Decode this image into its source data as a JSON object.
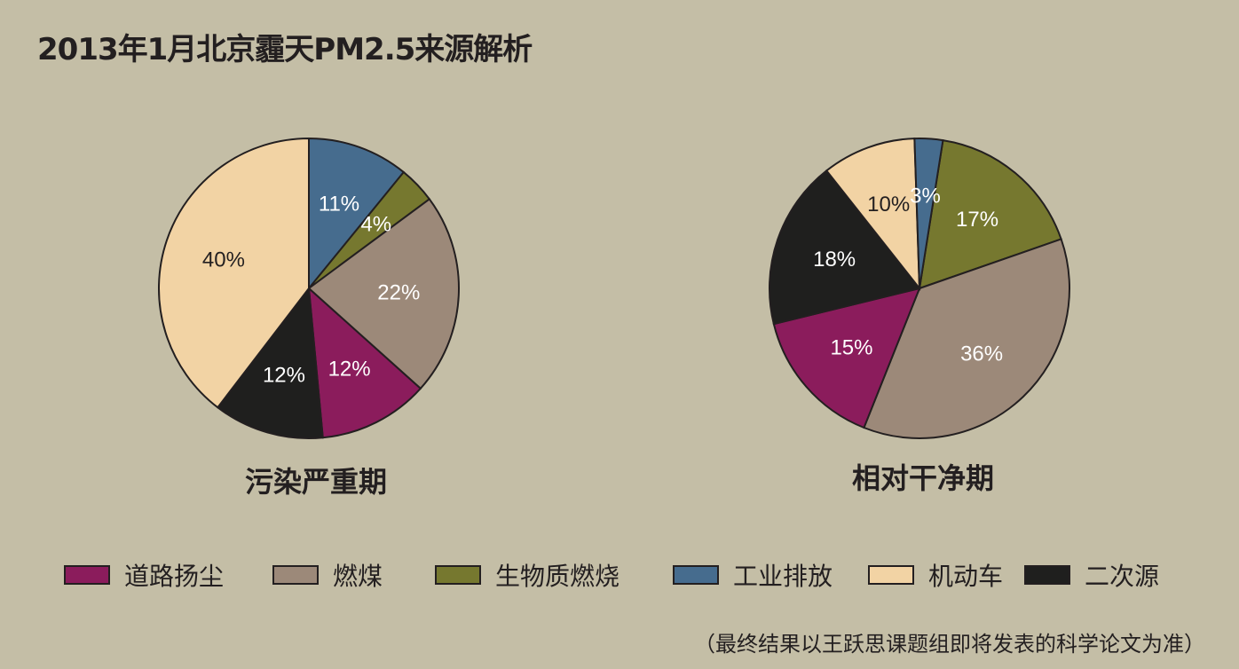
{
  "title": "2013年1月北京霾天PM2.5来源解析",
  "note": "（最终结果以王跃思课题组即将发表的科学论文为准）",
  "colors": {
    "road_dust": "#8b1c5c",
    "coal": "#9c8979",
    "biomass": "#76782f",
    "industry": "#466c8e",
    "vehicle": "#f2d3a4",
    "secondary": "#1f1f1e"
  },
  "legend": [
    {
      "key": "road_dust",
      "label": "道路扬尘"
    },
    {
      "key": "coal",
      "label": "燃煤"
    },
    {
      "key": "biomass",
      "label": "生物质燃烧"
    },
    {
      "key": "industry",
      "label": "工业排放"
    },
    {
      "key": "vehicle",
      "label": "机动车"
    },
    {
      "key": "secondary",
      "label": "二次源"
    }
  ],
  "chart_data": [
    {
      "type": "pie",
      "title": "污染严重期",
      "slices": [
        {
          "key": "industry",
          "label": "工业排放",
          "value": 11,
          "text": "11%"
        },
        {
          "key": "biomass",
          "label": "生物质燃烧",
          "value": 4,
          "text": "4%"
        },
        {
          "key": "coal",
          "label": "燃煤",
          "value": 22,
          "text": "22%"
        },
        {
          "key": "road_dust",
          "label": "道路扬尘",
          "value": 12,
          "text": "12%"
        },
        {
          "key": "secondary",
          "label": "二次源",
          "value": 12,
          "text": "12%"
        },
        {
          "key": "vehicle",
          "label": "机动车",
          "value": 40,
          "text": "40%"
        }
      ]
    },
    {
      "type": "pie",
      "title": "相对干净期",
      "slices": [
        {
          "key": "biomass",
          "label": "生物质燃烧",
          "value": 17,
          "text": "17%"
        },
        {
          "key": "coal",
          "label": "燃煤",
          "value": 36,
          "text": "36%"
        },
        {
          "key": "road_dust",
          "label": "道路扬尘",
          "value": 15,
          "text": "15%"
        },
        {
          "key": "secondary",
          "label": "二次源",
          "value": 18,
          "text": "18%"
        },
        {
          "key": "vehicle",
          "label": "机动车",
          "value": 10,
          "text": "10%"
        },
        {
          "key": "industry",
          "label": "工业排放",
          "value": 3,
          "text": "3%"
        }
      ]
    }
  ]
}
